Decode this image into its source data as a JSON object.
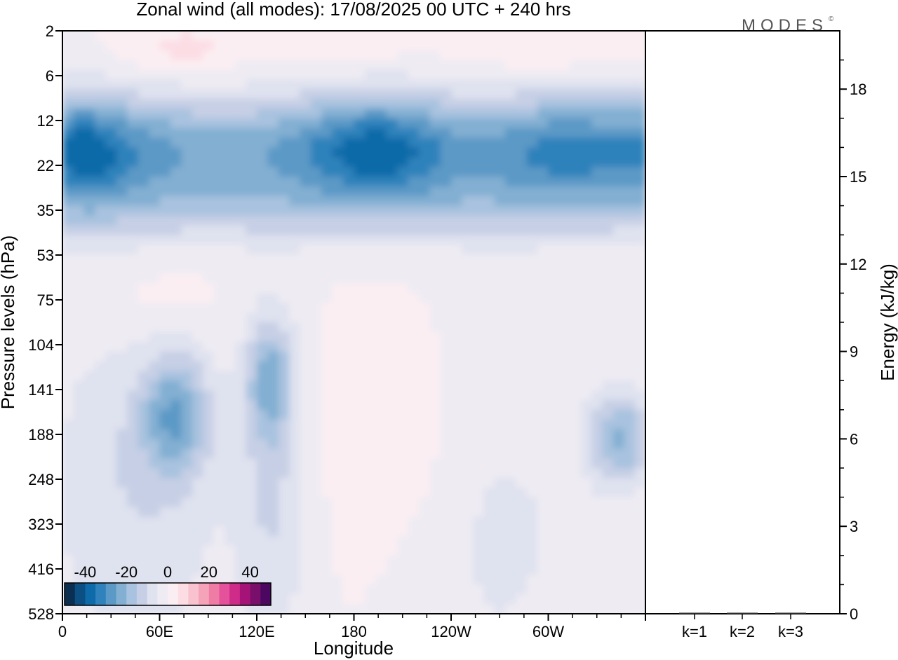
{
  "title": "Zonal wind (all modes):  17/08/2025  00 UTC  + 240 hrs",
  "logo": "MODES",
  "logo_mark": "©",
  "colors": {
    "frame": "#000000",
    "background": "#ffffff",
    "negative_ramp": [
      "#0b2f50",
      "#0c4f82",
      "#0e6aa8",
      "#2f82bb",
      "#5b99c6",
      "#82afd2",
      "#a8c2df",
      "#c6cfe5",
      "#dfe2ef",
      "#eeebf3"
    ],
    "positive_ramp": [
      "#fbeef2",
      "#fcdde4",
      "#f8c3cf",
      "#f4a3b9",
      "#ef7ca5",
      "#e5519a",
      "#cf2c89",
      "#a51379",
      "#7a0e6b",
      "#4c0861"
    ]
  },
  "chart_data": [
    {
      "type": "heatmap",
      "title": "Zonal wind (all modes):  17/08/2025  00 UTC  + 240 hrs",
      "xlabel": "Longitude",
      "ylabel": "Pressure levels (hPa)",
      "x_ticks": [
        "0",
        "60E",
        "120E",
        "180",
        "120W",
        "60W"
      ],
      "x_tick_degrees": [
        0,
        60,
        120,
        180,
        240,
        300
      ],
      "xlim": [
        0,
        360
      ],
      "y_ticks": [
        "2",
        "6",
        "12",
        "22",
        "35",
        "53",
        "75",
        "104",
        "141",
        "188",
        "248",
        "323",
        "416",
        "528"
      ],
      "y_axis": "pressure, increasing downward",
      "colorbar": {
        "ticks": [
          "-40",
          "-20",
          "0",
          "20",
          "40"
        ],
        "range": [
          -50,
          50
        ],
        "step": 5
      },
      "bands": [
        {
          "levels": "2–6 hPa",
          "value_range": [
            0,
            10
          ],
          "note": "weak easterly/westerly mix, pink patches near 60E–120E and 120W–60W"
        },
        {
          "levels": "6–12 hPa",
          "value_range": [
            -20,
            -5
          ],
          "note": "easterly transition"
        },
        {
          "levels": "12–35 hPa",
          "value_range": [
            -30,
            -15
          ],
          "note": "strong easterly jet, cores below -25 near 0–20E, 180–200, 285–315"
        },
        {
          "levels": "35–53 hPa",
          "value_range": [
            -15,
            -5
          ]
        },
        {
          "levels": "53–104 hPa",
          "value_range": [
            -5,
            5
          ],
          "note": "near-zero, weak positive near 40E–80E"
        },
        {
          "levels": "104–416 hPa",
          "value_range": [
            -20,
            5
          ],
          "note": "easterly cores near 60–80E, 120–140E and 335–355E; weak westerlies 170–290"
        },
        {
          "levels": "416–528 hPa",
          "value_range": [
            -10,
            5
          ]
        }
      ]
    },
    {
      "type": "bar",
      "ylabel": "Energy (kJ/kg)",
      "categories": [
        "k=1",
        "k=2",
        "k=3"
      ],
      "values": [
        0,
        0,
        0
      ],
      "ylim": [
        0,
        20
      ],
      "y_ticks": [
        "0",
        "3",
        "6",
        "9",
        "12",
        "15",
        "18"
      ],
      "y_tick_values": [
        0,
        3,
        6,
        9,
        12,
        15,
        18
      ],
      "axis_side": "right"
    }
  ]
}
